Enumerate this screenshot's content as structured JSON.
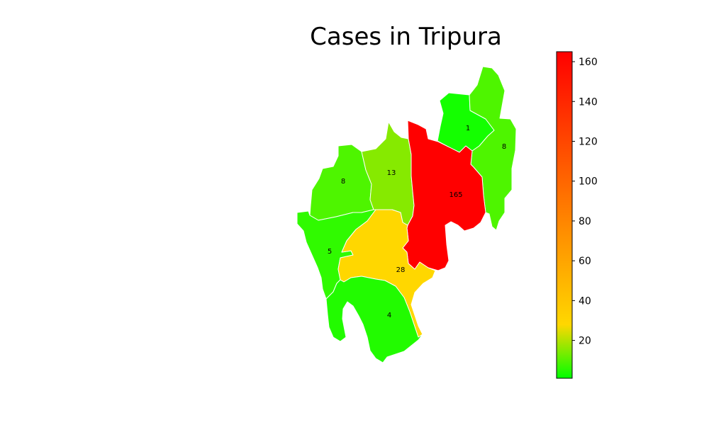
{
  "title": "Cases in Tripura",
  "districts": [
    {
      "label": "1",
      "value": 1,
      "color": "#14ff00"
    },
    {
      "label": "8",
      "value": 8,
      "color": "#4ef500"
    },
    {
      "label": "8",
      "value": 8,
      "color": "#4ef500"
    },
    {
      "label": "13",
      "value": 13,
      "color": "#86ea00"
    },
    {
      "label": "165",
      "value": 165,
      "color": "#ff0000"
    },
    {
      "label": "5",
      "value": 5,
      "color": "#30fa00"
    },
    {
      "label": "28",
      "value": 28,
      "color": "#ffd700"
    },
    {
      "label": "4",
      "value": 4,
      "color": "#22fb00"
    }
  ],
  "colorbar": {
    "min": 1,
    "max": 165,
    "ticks": [
      "20",
      "40",
      "60",
      "80",
      "100",
      "120",
      "140",
      "160"
    ],
    "tick_values": [
      20,
      40,
      60,
      80,
      100,
      120,
      140,
      160
    ],
    "stops": [
      {
        "value": 1,
        "color": "#00ff00"
      },
      {
        "value": 28,
        "color": "#ffd700"
      },
      {
        "value": 165,
        "color": "#ff0000"
      }
    ]
  },
  "colors": {
    "border": "#ffffff",
    "label": "#000000"
  }
}
